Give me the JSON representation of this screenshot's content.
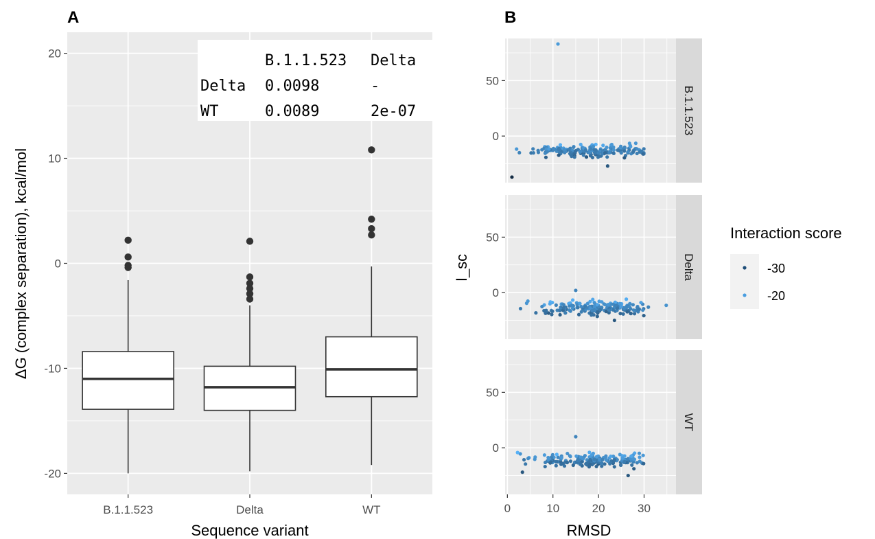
{
  "panels": {
    "a_label": "A",
    "b_label": "B"
  },
  "pvalue_table": {
    "header": [
      "",
      "B.1.1.523",
      "Delta"
    ],
    "rows": [
      [
        "Delta",
        "0.0098",
        "-"
      ],
      [
        "WT",
        "0.0089",
        "2e-07"
      ]
    ]
  },
  "chart_data": [
    {
      "type": "box",
      "panel": "A",
      "xlabel": "Sequence variant",
      "ylabel": "ΔG (complex separation), kcal/mol",
      "categories": [
        "B.1.1.523",
        "Delta",
        "WT"
      ],
      "ylim": [
        -22,
        22
      ],
      "yticks": [
        -20,
        -10,
        0,
        10,
        20
      ],
      "boxes": [
        {
          "name": "B.1.1.523",
          "whisker_low": -20.0,
          "q1": -13.9,
          "median": -11.0,
          "q3": -8.4,
          "whisker_high": -1.6,
          "outliers": [
            2.2,
            0.6,
            -0.2,
            -0.4
          ]
        },
        {
          "name": "Delta",
          "whisker_low": -19.8,
          "q1": -14.0,
          "median": -11.8,
          "q3": -9.8,
          "whisker_high": -4.0,
          "outliers": [
            2.1,
            -1.3,
            -1.9,
            -2.4,
            -2.9,
            -3.4
          ]
        },
        {
          "name": "WT",
          "whisker_low": -19.2,
          "q1": -12.7,
          "median": -10.1,
          "q3": -7.0,
          "whisker_high": -0.3,
          "outliers": [
            10.8,
            4.2,
            3.3,
            2.7
          ]
        }
      ],
      "grid": true,
      "background": "#ebebeb"
    },
    {
      "type": "scatter",
      "panel": "B",
      "xlabel": "RMSD",
      "ylabel": "I_sc",
      "xlim": [
        -0.5,
        37
      ],
      "ylim": [
        -42,
        88
      ],
      "xticks": [
        0,
        10,
        20,
        30
      ],
      "yticks": [
        0,
        50
      ],
      "facets": [
        "B.1.1.523",
        "Delta",
        "WT"
      ],
      "legend": {
        "title": "Interaction score",
        "entries": [
          {
            "label": "-30",
            "color": "#1f4e79"
          },
          {
            "label": "-20",
            "color": "#4a9ee0"
          }
        ],
        "position": "right"
      },
      "color_scale": {
        "low": -40,
        "high": -10,
        "low_color": "#132b43",
        "high_color": "#56b1f7"
      },
      "outliers": {
        "B.1.1.523": [
          {
            "x": 11.1,
            "y": 83,
            "c": -15
          },
          {
            "x": 1.0,
            "y": -37,
            "c": -40
          },
          {
            "x": 22.0,
            "y": -27,
            "c": -30
          }
        ],
        "Delta": [
          {
            "x": 15.0,
            "y": 2,
            "c": -20
          },
          {
            "x": 23.5,
            "y": -25,
            "c": -30
          }
        ],
        "WT": [
          {
            "x": 15.0,
            "y": 10,
            "c": -20
          },
          {
            "x": 3.3,
            "y": -22,
            "c": -30
          },
          {
            "x": 26.5,
            "y": -25,
            "c": -30
          }
        ]
      },
      "series_params": {
        "B.1.1.523": {
          "n": 190,
          "ymean": -13,
          "yspread": 4,
          "seed": 7
        },
        "Delta": {
          "n": 200,
          "ymean": -14,
          "yspread": 4.5,
          "seed": 11
        },
        "WT": {
          "n": 190,
          "ymean": -11,
          "yspread": 4.5,
          "seed": 23
        }
      }
    }
  ]
}
